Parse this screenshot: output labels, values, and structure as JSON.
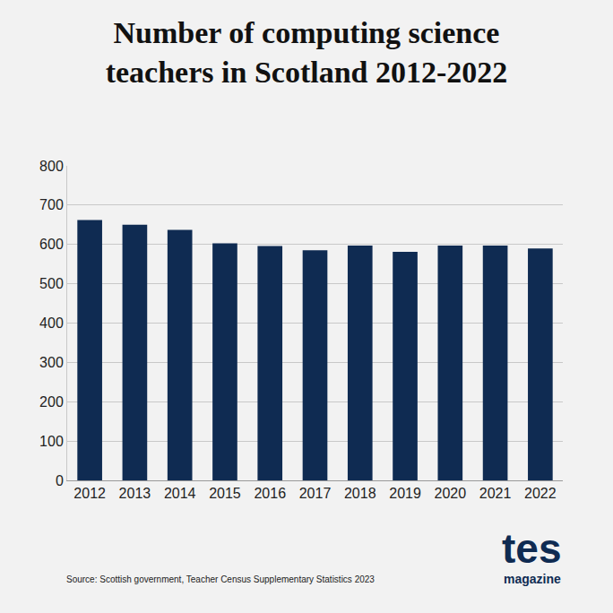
{
  "chart_data": {
    "type": "bar",
    "title": "Number of computing science\nteachers in Scotland 2012-2022",
    "categories": [
      "2012",
      "2013",
      "2014",
      "2015",
      "2016",
      "2017",
      "2018",
      "2019",
      "2020",
      "2021",
      "2022"
    ],
    "values": [
      662,
      650,
      637,
      603,
      596,
      585,
      597,
      581,
      597,
      597,
      590
    ],
    "color": "#0f2b52",
    "ylim": [
      0,
      800
    ],
    "yticks": [
      0,
      100,
      200,
      300,
      400,
      500,
      600,
      700,
      800
    ],
    "grid": true,
    "source": "Source: Scottish government, Teacher Census Supplementary Statistics 2023",
    "logo": [
      "tes",
      "magazine"
    ]
  }
}
